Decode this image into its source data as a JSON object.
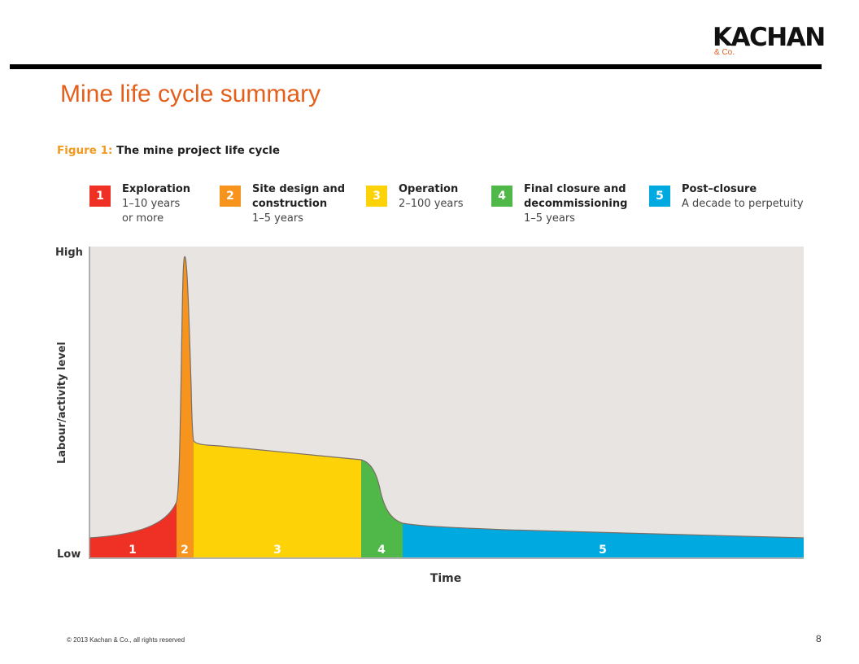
{
  "logo": {
    "word": "KACHAN",
    "sub": "& Co."
  },
  "slide_title": "Mine life cycle summary",
  "figure": {
    "lead": "Figure 1:",
    "caption": " The mine project life cycle"
  },
  "legend": [
    {
      "num": "1",
      "title": "Exploration",
      "lines": [
        "1–10 years",
        "or more"
      ],
      "color": "#ee3124"
    },
    {
      "num": "2",
      "title": "Site design and",
      "lines": [
        "construction",
        "1–5 years"
      ],
      "color": "#f7941d"
    },
    {
      "num": "3",
      "title": "Operation",
      "lines": [
        "2–100 years"
      ],
      "color": "#fdd207"
    },
    {
      "num": "4",
      "title": "Final closure and",
      "lines": [
        "decommissioning",
        "1–5 years"
      ],
      "color": "#50b848"
    },
    {
      "num": "5",
      "title": "Post–closure",
      "lines": [
        "A decade to perpetuity"
      ],
      "color": "#00a9e0"
    }
  ],
  "chart_data": {
    "type": "area",
    "xlabel": "Time",
    "ylabel": "Labour/activity level",
    "y_ticks": [
      "High",
      "Low"
    ],
    "background": "#e8e4e2",
    "phases": [
      {
        "label": "1",
        "color": "#ee3124"
      },
      {
        "label": "2",
        "color": "#f7941d"
      },
      {
        "label": "3",
        "color": "#fdd207"
      },
      {
        "label": "4",
        "color": "#50b848"
      },
      {
        "label": "5",
        "color": "#00a9e0"
      }
    ]
  },
  "footer": {
    "copyright": "© 2013 Kachan & Co., all rights reserved",
    "page": "8"
  }
}
